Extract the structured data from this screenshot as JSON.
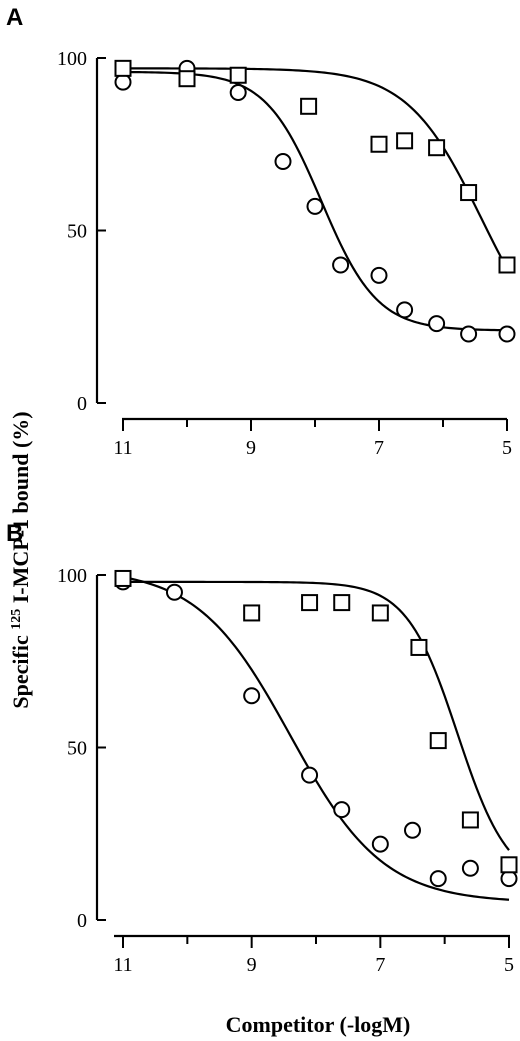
{
  "figure": {
    "ylabel_prefix": "Specific ",
    "ylabel_sup": "125",
    "ylabel_suffix": " I-MCP-1 bound (%)",
    "xlabel": "Competitor (-logM)"
  },
  "chart_data": [
    {
      "type": "scatter",
      "panel": "A",
      "x_ticks": [
        "11",
        "9",
        "7",
        "5"
      ],
      "x_tick_values": [
        11,
        9,
        7,
        5
      ],
      "y_ticks": [
        "0",
        "50",
        "100"
      ],
      "y_tick_values": [
        0,
        50,
        100
      ],
      "xlim": [
        11,
        5
      ],
      "ylim": [
        0,
        100
      ],
      "xlabel": "Competitor (-logM)",
      "ylabel": "Specific 125 I-MCP-1 bound (%)",
      "series": [
        {
          "marker": "circle",
          "x": [
            11.0,
            10.0,
            9.2,
            8.5,
            8.0,
            7.6,
            7.0,
            6.6,
            6.1,
            5.6,
            5.0
          ],
          "y": [
            93,
            97,
            90,
            70,
            57,
            40,
            37,
            27,
            23,
            20,
            20
          ],
          "fit": {
            "top": 96,
            "bottom": 21,
            "logec50": 7.9,
            "hill": 1.0
          }
        },
        {
          "marker": "square",
          "x": [
            11.0,
            10.0,
            9.2,
            8.1,
            7.0,
            6.6,
            6.1,
            5.6,
            5.0
          ],
          "y": [
            97,
            94,
            95,
            86,
            75,
            76,
            74,
            61,
            40
          ],
          "fit": {
            "top": 97,
            "bottom": 10,
            "logec50": 5.4,
            "hill": 0.75
          }
        }
      ]
    },
    {
      "type": "scatter",
      "panel": "B",
      "x_ticks": [
        "11",
        "9",
        "7",
        "5"
      ],
      "x_tick_values": [
        11,
        9,
        7,
        5
      ],
      "y_ticks": [
        "0",
        "50",
        "100"
      ],
      "y_tick_values": [
        0,
        50,
        100
      ],
      "xlim": [
        11,
        5
      ],
      "ylim": [
        0,
        100
      ],
      "xlabel": "Competitor (-logM)",
      "ylabel": "Specific 125 I-MCP-1 bound (%)",
      "series": [
        {
          "marker": "circle",
          "x": [
            11.0,
            10.2,
            9.0,
            8.1,
            7.6,
            7.0,
            6.5,
            6.1,
            5.6,
            5.0
          ],
          "y": [
            98,
            95,
            65,
            42,
            32,
            22,
            26,
            12,
            15,
            12
          ],
          "fit": {
            "top": 102,
            "bottom": 5,
            "logec50": 8.4,
            "hill": 0.6
          }
        },
        {
          "marker": "square",
          "x": [
            11.0,
            9.0,
            8.1,
            7.6,
            7.0,
            6.4,
            6.1,
            5.6,
            5.0
          ],
          "y": [
            99,
            89,
            92,
            92,
            89,
            79,
            52,
            29,
            16
          ],
          "fit": {
            "top": 98,
            "bottom": 10,
            "logec50": 5.8,
            "hill": 1.1
          }
        }
      ]
    }
  ]
}
